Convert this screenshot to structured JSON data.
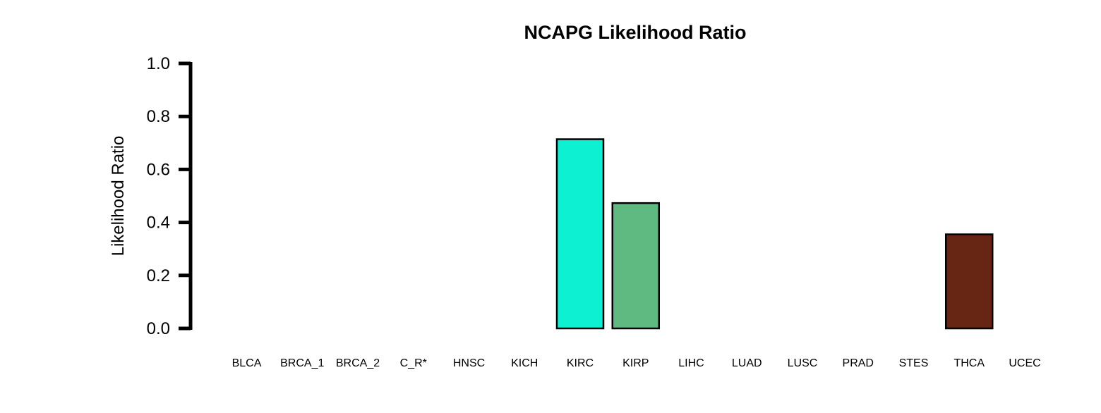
{
  "chart_data": {
    "type": "bar",
    "title": "NCAPG Likelihood Ratio",
    "xlabel": "",
    "ylabel": "Likelihood Ratio",
    "ylim": [
      0,
      1
    ],
    "yticks": [
      "0.0",
      "0.2",
      "0.4",
      "0.6",
      "0.8",
      "1.0"
    ],
    "categories": [
      "BLCA",
      "BRCA_1",
      "BRCA_2",
      "C_R*",
      "HNSC",
      "KICH",
      "KIRC",
      "KIRP",
      "LIHC",
      "LUAD",
      "LUSC",
      "PRAD",
      "STES",
      "THCA",
      "UCEC"
    ],
    "values": [
      0,
      0,
      0,
      0,
      0,
      0,
      0.714,
      0.473,
      0,
      0,
      0,
      0,
      0,
      0.355,
      0
    ],
    "colors": [
      "#ffffff",
      "#ffffff",
      "#ffffff",
      "#ffffff",
      "#ffffff",
      "#ffffff",
      "#0df0d2",
      "#5fba82",
      "#ffffff",
      "#ffffff",
      "#ffffff",
      "#ffffff",
      "#ffffff",
      "#662613",
      "#ffffff"
    ],
    "grid": false,
    "legend": "none"
  }
}
